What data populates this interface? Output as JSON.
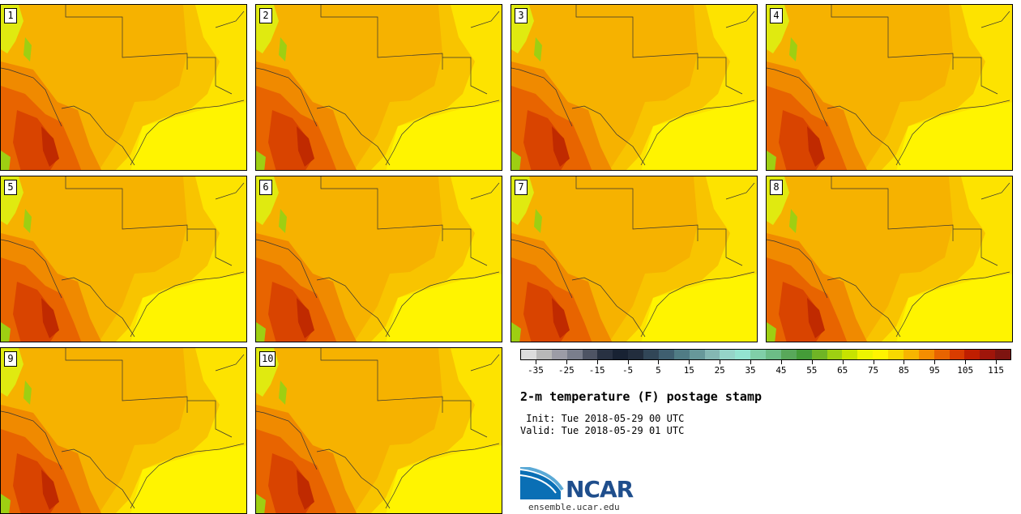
{
  "panels": [
    {
      "label": "1"
    },
    {
      "label": "2"
    },
    {
      "label": "3"
    },
    {
      "label": "4"
    },
    {
      "label": "5"
    },
    {
      "label": "6"
    },
    {
      "label": "7"
    },
    {
      "label": "8"
    },
    {
      "label": "9"
    },
    {
      "label": "10"
    }
  ],
  "colorbar": {
    "colors": [
      "#dcdcdc",
      "#b8b8b8",
      "#9c9ca6",
      "#7a7e8c",
      "#4e5464",
      "#283142",
      "#182233",
      "#222d3d",
      "#314657",
      "#3f5f70",
      "#507c85",
      "#67989a",
      "#84b7b3",
      "#95d4c8",
      "#93e3d0",
      "#80cfa8",
      "#6cbd86",
      "#58a85a",
      "#449c38",
      "#6fb425",
      "#9ecf12",
      "#c7e300",
      "#eef400",
      "#fff400",
      "#f8d800",
      "#f7b500",
      "#f48e00",
      "#e86400",
      "#d93c00",
      "#c01e00",
      "#a0150a",
      "#7e1410"
    ],
    "tick_labels": [
      "-35",
      "-25",
      "-15",
      "-5",
      "5",
      "15",
      "25",
      "35",
      "45",
      "55",
      "65",
      "75",
      "85",
      "95",
      "105",
      "115"
    ]
  },
  "title": "2-m temperature (F) postage stamp",
  "init": " Init: Tue 2018-05-29 00 UTC",
  "valid": "Valid: Tue 2018-05-29 01 UTC",
  "logo": {
    "text": "NCAR",
    "icon": "ncar-logo-icon"
  },
  "website": "ensemble.ucar.edu"
}
